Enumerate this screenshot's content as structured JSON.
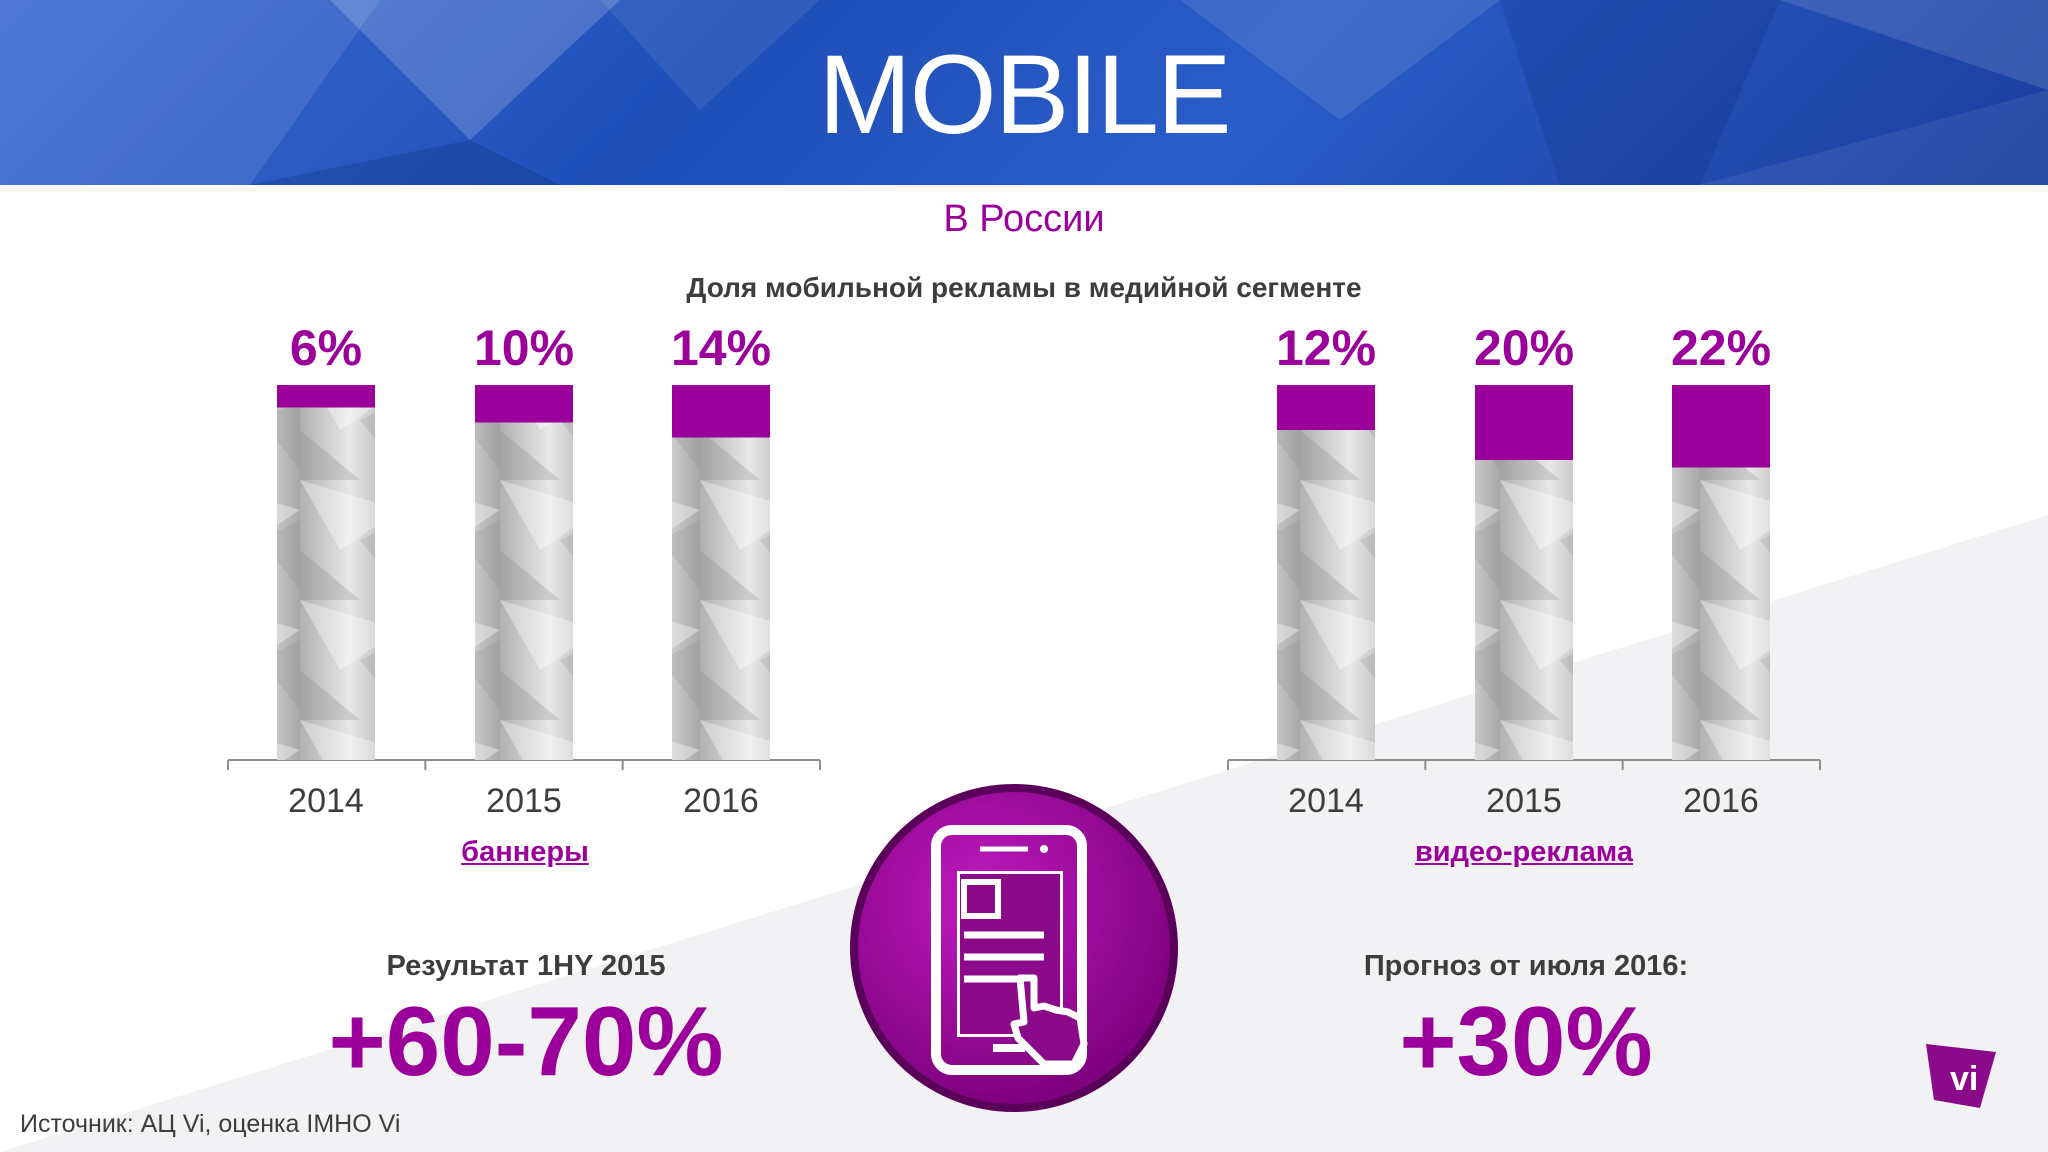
{
  "header": {
    "title": "MOBILE"
  },
  "subtitle": "В России",
  "chart_title": "Доля мобильной рекламы в медийной сегменте",
  "chart_data": [
    {
      "type": "bar",
      "categories": [
        "2014",
        "2015",
        "2016"
      ],
      "values": [
        6,
        10,
        14
      ],
      "value_labels": [
        "6%",
        "10%",
        "14%"
      ],
      "xlabel": "баннеры",
      "ylim": [
        0,
        100
      ],
      "bar_fill_color": "#9b009b"
    },
    {
      "type": "bar",
      "categories": [
        "2014",
        "2015",
        "2016"
      ],
      "values": [
        12,
        20,
        22
      ],
      "value_labels": [
        "12%",
        "20%",
        "22%"
      ],
      "xlabel": "видео-реклама",
      "ylim": [
        0,
        100
      ],
      "bar_fill_color": "#9b009b"
    }
  ],
  "stats": {
    "left": {
      "label": "Результат 1HY 2015",
      "value": "+60-70%"
    },
    "right": {
      "label": "Прогноз от июля 2016:",
      "value": "+30%"
    }
  },
  "source": "Источник: АЦ Vi, оценка IMHO Vi",
  "logo": {
    "text": "vi"
  },
  "icons": {
    "center": "smartphone-touch-icon"
  },
  "colors": {
    "accent": "#9b009b",
    "header_blue": "#1f4fb8",
    "text": "#3d3d3d"
  }
}
